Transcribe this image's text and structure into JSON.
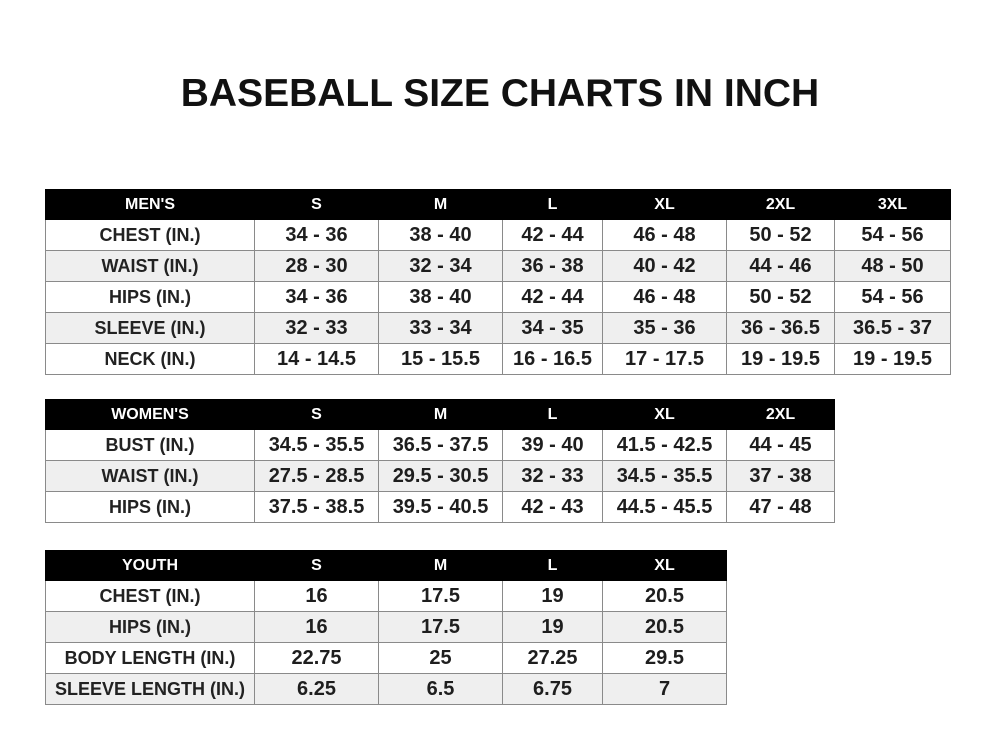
{
  "title": "BASEBALL SIZE CHARTS IN INCH",
  "tables": [
    {
      "id": "mens",
      "header": [
        "MEN'S",
        "S",
        "M",
        "L",
        "XL",
        "2XL",
        "3XL"
      ],
      "rows": [
        [
          "CHEST (IN.)",
          "34 - 36",
          "38 - 40",
          "42 - 44",
          "46 - 48",
          "50 - 52",
          "54 - 56"
        ],
        [
          "WAIST (IN.)",
          "28 - 30",
          "32 - 34",
          "36 - 38",
          "40 - 42",
          "44 - 46",
          "48 - 50"
        ],
        [
          "HIPS (IN.)",
          "34 - 36",
          "38 - 40",
          "42 - 44",
          "46 - 48",
          "50 - 52",
          "54 - 56"
        ],
        [
          "SLEEVE (IN.)",
          "32 - 33",
          "33 - 34",
          "34 - 35",
          "35 - 36",
          "36 - 36.5",
          "36.5 - 37"
        ],
        [
          "NECK (IN.)",
          "14 - 14.5",
          "15 - 15.5",
          "16 - 16.5",
          "17 - 17.5",
          "19 - 19.5",
          "19 - 19.5"
        ]
      ]
    },
    {
      "id": "womens",
      "header": [
        "WOMEN'S",
        "S",
        "M",
        "L",
        "XL",
        "2XL"
      ],
      "rows": [
        [
          "BUST (IN.)",
          "34.5 - 35.5",
          "36.5 - 37.5",
          "39 - 40",
          "41.5 - 42.5",
          "44 - 45"
        ],
        [
          "WAIST (IN.)",
          "27.5 - 28.5",
          "29.5 - 30.5",
          "32 - 33",
          "34.5 - 35.5",
          "37 - 38"
        ],
        [
          "HIPS (IN.)",
          "37.5 - 38.5",
          "39.5 - 40.5",
          "42 - 43",
          "44.5 - 45.5",
          "47 - 48"
        ]
      ]
    },
    {
      "id": "youth",
      "header": [
        "YOUTH",
        "S",
        "M",
        "L",
        "XL"
      ],
      "rows": [
        [
          "CHEST (IN.)",
          "16",
          "17.5",
          "19",
          "20.5"
        ],
        [
          "HIPS (IN.)",
          "16",
          "17.5",
          "19",
          "20.5"
        ],
        [
          "BODY LENGTH (IN.)",
          "22.75",
          "25",
          "27.25",
          "29.5"
        ],
        [
          "SLEEVE LENGTH (IN.)",
          "6.25",
          "6.5",
          "6.75",
          "7"
        ]
      ]
    }
  ]
}
